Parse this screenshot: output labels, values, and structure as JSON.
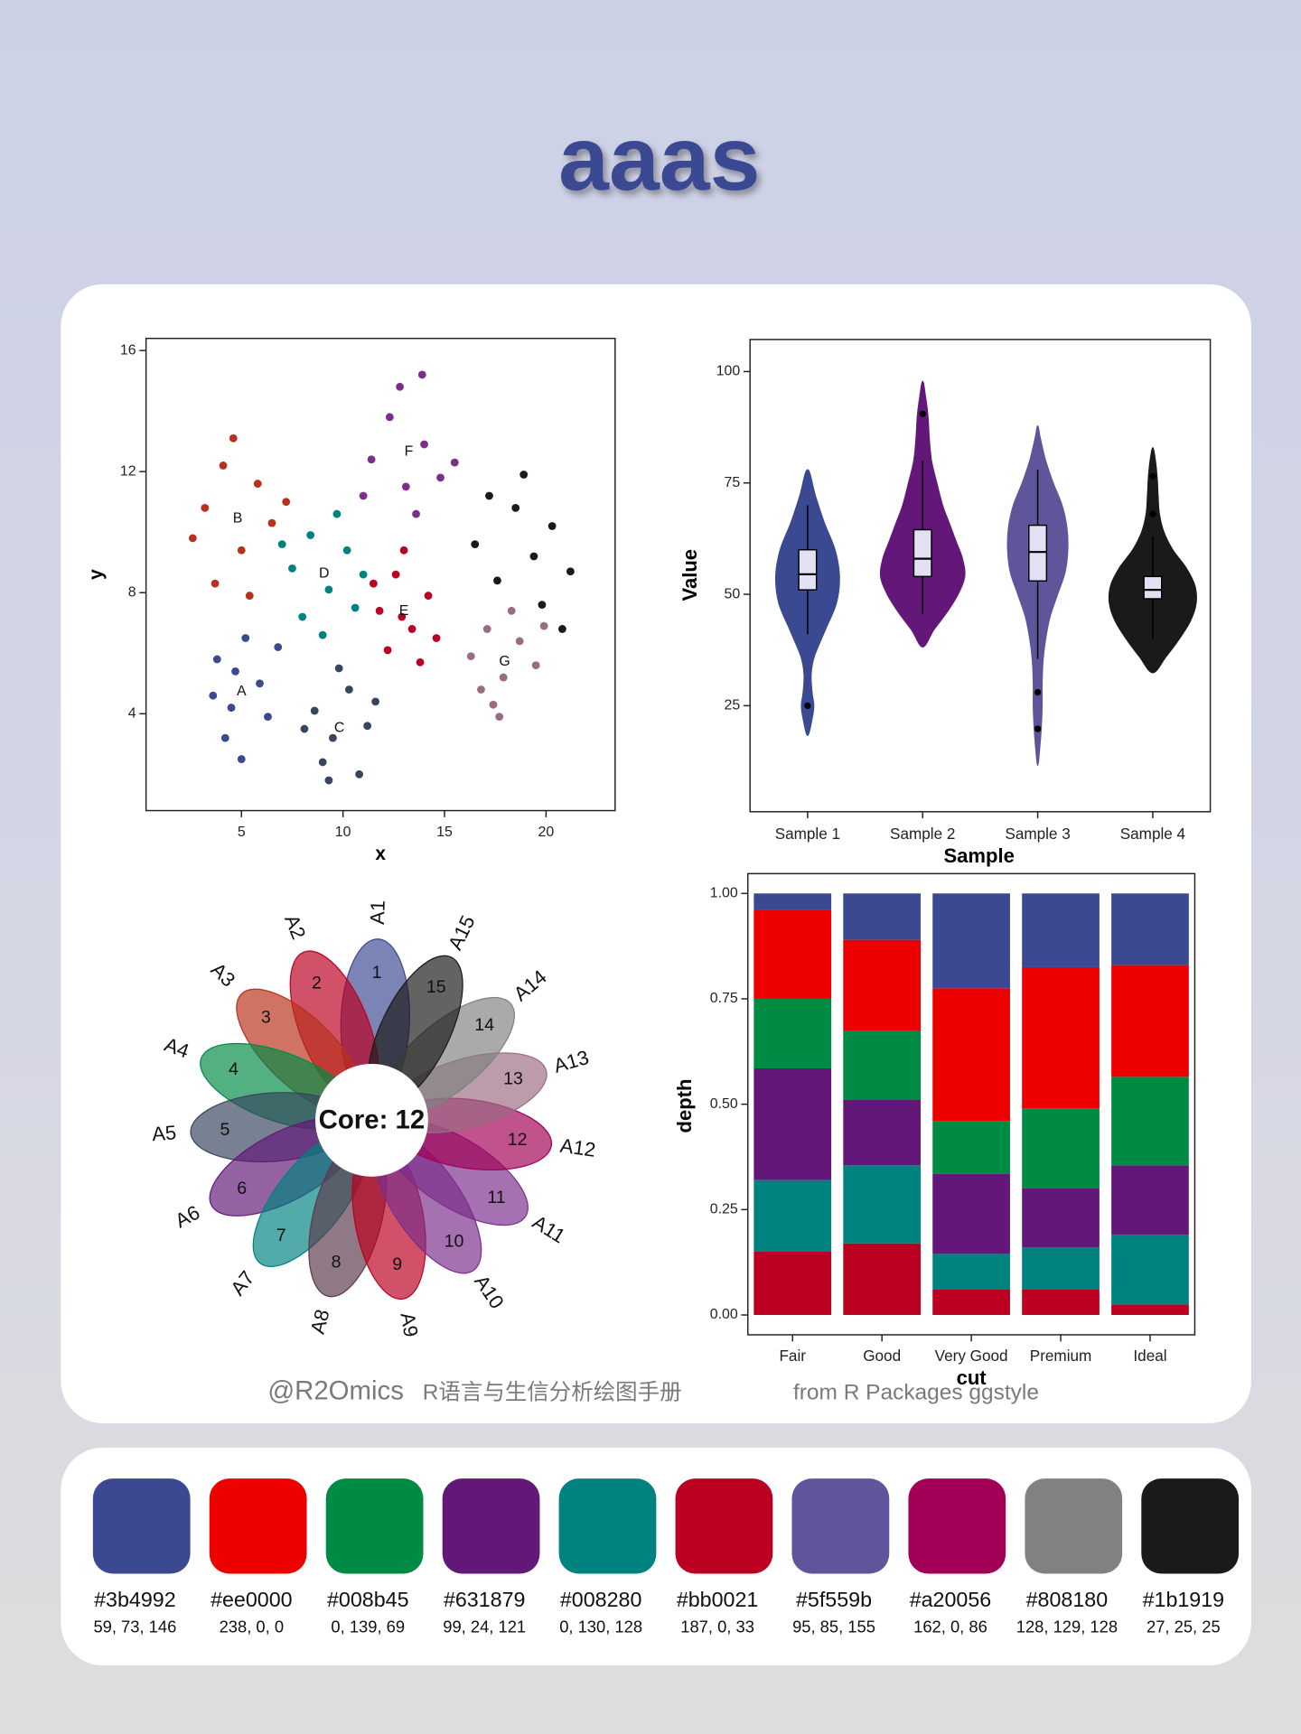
{
  "title": "aaas",
  "chart_data": [
    {
      "type": "scatter",
      "xlabel": "x",
      "ylabel": "y",
      "xlim": [
        0.3,
        23.4
      ],
      "xticks": [
        5,
        10,
        15,
        20
      ],
      "ylim": [
        0.8,
        16.4
      ],
      "yticks": [
        4,
        8,
        12,
        16
      ],
      "series": [
        {
          "name": "A",
          "color": "#3b4992",
          "x": [
            3.8,
            4.5,
            5.2,
            5.9,
            4.2,
            6.3,
            5.0,
            4.7,
            3.6,
            6.8
          ],
          "y": [
            5.8,
            4.2,
            6.5,
            5.0,
            3.2,
            3.9,
            2.5,
            5.4,
            4.6,
            6.2
          ]
        },
        {
          "name": "B",
          "color": "#b8311c",
          "x": [
            3.2,
            4.1,
            5.0,
            5.8,
            2.6,
            6.5,
            4.6,
            3.7,
            7.2,
            5.4
          ],
          "y": [
            10.8,
            12.2,
            9.4,
            11.6,
            9.8,
            10.3,
            13.1,
            8.3,
            11.0,
            7.9
          ]
        },
        {
          "name": "C",
          "color": "#36465e",
          "x": [
            8.6,
            9.5,
            10.3,
            11.2,
            9.0,
            10.8,
            8.1,
            9.8,
            11.6,
            9.3
          ],
          "y": [
            4.1,
            3.2,
            4.8,
            3.6,
            2.4,
            2.0,
            3.5,
            5.5,
            4.4,
            1.8
          ]
        },
        {
          "name": "D",
          "color": "#008280",
          "x": [
            7.5,
            8.4,
            9.3,
            10.2,
            11.0,
            8.0,
            9.7,
            10.6,
            7.0,
            9.0
          ],
          "y": [
            8.8,
            9.9,
            8.1,
            9.4,
            8.6,
            7.2,
            10.6,
            7.5,
            9.6,
            6.6
          ]
        },
        {
          "name": "E",
          "color": "#bb0021",
          "x": [
            11.8,
            12.6,
            13.4,
            14.2,
            12.2,
            13.0,
            14.6,
            11.5,
            13.8,
            12.9
          ],
          "y": [
            7.4,
            8.6,
            6.8,
            7.9,
            6.1,
            9.4,
            6.5,
            8.3,
            5.7,
            7.2
          ]
        },
        {
          "name": "F",
          "color": "#7b2e8a",
          "x": [
            11.4,
            12.3,
            13.1,
            14.0,
            14.8,
            12.8,
            13.6,
            15.5,
            11.0,
            13.9
          ],
          "y": [
            12.4,
            13.8,
            11.5,
            12.9,
            11.8,
            14.8,
            10.6,
            12.3,
            11.2,
            15.2
          ]
        },
        {
          "name": "G",
          "color": "#9b6b84",
          "x": [
            16.3,
            17.1,
            17.9,
            18.7,
            19.5,
            17.4,
            18.3,
            16.8,
            19.9,
            17.7
          ],
          "y": [
            5.9,
            6.8,
            5.2,
            6.4,
            5.6,
            4.3,
            7.4,
            4.8,
            6.9,
            3.9
          ]
        },
        {
          "color": "#1b1919",
          "x": [
            16.5,
            17.6,
            18.5,
            19.4,
            20.3,
            21.2,
            18.9,
            19.8,
            17.2,
            20.8
          ],
          "y": [
            9.6,
            8.4,
            10.8,
            9.2,
            10.2,
            8.7,
            11.9,
            7.6,
            11.2,
            6.8
          ]
        }
      ]
    },
    {
      "type": "violin",
      "xlabel": "Sample",
      "ylabel": "Value",
      "categories": [
        "Sample 1",
        "Sample 2",
        "Sample 3",
        "Sample 4"
      ],
      "ylim": [
        1.2,
        107.2
      ],
      "yticks": [
        25,
        50,
        75,
        100
      ],
      "samples": [
        {
          "color": "#3b4992",
          "whisker_low": 41,
          "q1": 51,
          "median": 54.5,
          "q3": 60,
          "whisker_high": 70,
          "outliers": [
            25
          ],
          "levels": [
            18.3,
            22,
            25,
            28,
            32,
            36,
            42,
            48,
            54,
            60,
            66,
            72,
            78
          ],
          "density": [
            0,
            0.1,
            0.14,
            0.1,
            0.08,
            0.15,
            0.4,
            0.65,
            0.72,
            0.62,
            0.38,
            0.18,
            0
          ]
        },
        {
          "color": "#631879",
          "whisker_low": 45.5,
          "q1": 54,
          "median": 58,
          "q3": 64.5,
          "whisker_high": 80,
          "outliers": [
            90.5
          ],
          "levels": [
            38.2,
            42,
            46,
            50,
            54,
            58,
            62,
            66,
            70,
            75,
            80,
            85,
            90,
            94,
            97.8
          ],
          "density": [
            0,
            0.25,
            0.55,
            0.8,
            0.95,
            0.9,
            0.75,
            0.6,
            0.45,
            0.32,
            0.2,
            0.15,
            0.12,
            0.07,
            0
          ]
        },
        {
          "color": "#5f559b",
          "whisker_low": 35.5,
          "q1": 53,
          "median": 59.5,
          "q3": 65.5,
          "whisker_high": 78,
          "outliers": [
            28,
            19.8
          ],
          "levels": [
            11.6,
            16,
            20,
            25,
            30,
            35,
            40,
            45,
            50,
            55,
            60,
            65,
            70,
            75,
            80,
            85,
            87.8
          ],
          "density": [
            0,
            0.05,
            0.08,
            0.1,
            0.1,
            0.12,
            0.18,
            0.28,
            0.45,
            0.62,
            0.68,
            0.66,
            0.55,
            0.35,
            0.18,
            0.06,
            0
          ]
        },
        {
          "color": "#1b1919",
          "whisker_low": 40,
          "q1": 49,
          "median": 51,
          "q3": 54,
          "whisker_high": 63,
          "outliers": [
            76.5,
            68
          ],
          "levels": [
            32.4,
            36,
            40,
            44,
            48,
            52,
            56,
            60,
            64,
            68,
            72,
            76,
            80,
            82.9
          ],
          "density": [
            0,
            0.3,
            0.6,
            0.85,
            0.98,
            0.95,
            0.75,
            0.45,
            0.25,
            0.15,
            0.12,
            0.1,
            0.06,
            0
          ]
        }
      ]
    },
    {
      "type": "stacked_bar",
      "xlabel": "cut",
      "ylabel": "depth",
      "categories": [
        "Fair",
        "Good",
        "Very Good",
        "Premium",
        "Ideal"
      ],
      "ylim": [
        -0.047,
        1.047
      ],
      "yticks": [
        {
          "value": 0,
          "label": "0.00"
        },
        {
          "value": 0.25,
          "label": "0.25"
        },
        {
          "value": 0.5,
          "label": "0.50"
        },
        {
          "value": 0.75,
          "label": "0.75"
        },
        {
          "value": 1,
          "label": "1.00"
        }
      ],
      "series": [
        {
          "color": "#bb0021",
          "values": [
            0.15,
            0.17,
            0.06,
            0.06,
            0.025
          ]
        },
        {
          "color": "#008280",
          "values": [
            0.17,
            0.185,
            0.085,
            0.1,
            0.165
          ]
        },
        {
          "color": "#631879",
          "values": [
            0.265,
            0.155,
            0.19,
            0.14,
            0.165
          ]
        },
        {
          "color": "#008b45",
          "values": [
            0.165,
            0.165,
            0.125,
            0.19,
            0.21
          ]
        },
        {
          "color": "#ee0000",
          "values": [
            0.21,
            0.215,
            0.315,
            0.335,
            0.265
          ]
        },
        {
          "color": "#3b4992",
          "values": [
            0.04,
            0.11,
            0.225,
            0.175,
            0.17
          ]
        }
      ]
    },
    {
      "type": "flower",
      "core_label": "Core: 12",
      "categories": [
        "A1",
        "A2",
        "A3",
        "A4",
        "A5",
        "A6",
        "A7",
        "A8",
        "A9",
        "A10",
        "A11",
        "A12",
        "A13",
        "A14",
        "A15"
      ],
      "values": [
        1,
        2,
        3,
        4,
        5,
        6,
        7,
        8,
        9,
        10,
        11,
        12,
        13,
        14,
        15
      ],
      "colors": [
        "#3b4992",
        "#bb0021",
        "#b8311c",
        "#008b45",
        "#36465e",
        "#631879",
        "#008280",
        "#5c3a4c",
        "#bb0021",
        "#7b2e8a",
        "#7b2e8a",
        "#a20056",
        "#9b6b84",
        "#808180",
        "#1b1919"
      ]
    }
  ],
  "footer": {
    "handle": "@R2Omics",
    "subtitle": "R语言与生信分析绘图手册",
    "source": "from  R Packages ggstyle"
  },
  "palette": [
    {
      "hex": "#3b4992",
      "rgb": "59, 73, 146"
    },
    {
      "hex": "#ee0000",
      "rgb": "238, 0, 0"
    },
    {
      "hex": "#008b45",
      "rgb": "0, 139, 69"
    },
    {
      "hex": "#631879",
      "rgb": "99, 24, 121"
    },
    {
      "hex": "#008280",
      "rgb": "0, 130, 128"
    },
    {
      "hex": "#bb0021",
      "rgb": "187, 0, 33"
    },
    {
      "hex": "#5f559b",
      "rgb": "95, 85, 155"
    },
    {
      "hex": "#a20056",
      "rgb": "162, 0, 86"
    },
    {
      "hex": "#808180",
      "rgb": "128, 129, 128"
    },
    {
      "hex": "#1b1919",
      "rgb": "27, 25, 25"
    }
  ]
}
